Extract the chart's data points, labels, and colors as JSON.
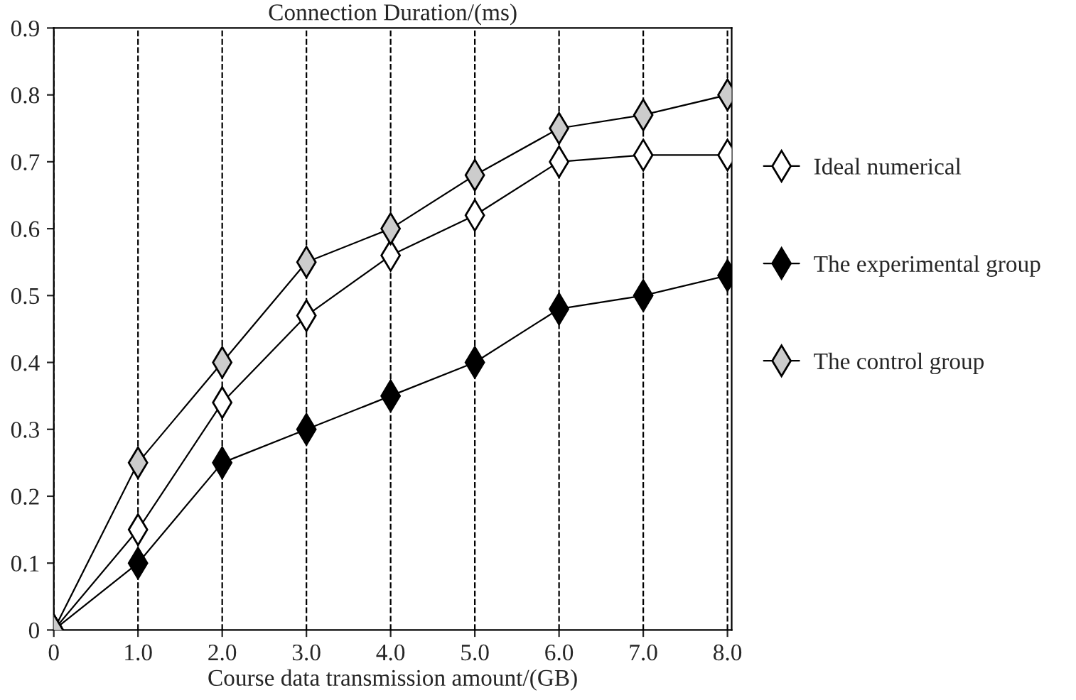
{
  "chart_data": {
    "type": "line",
    "title": "Connection Duration/(ms)",
    "xlabel": "Course data transmission amount/(GB)",
    "x": [
      0,
      1,
      2,
      3,
      4,
      5,
      6,
      7,
      8
    ],
    "series": [
      {
        "name": "Ideal numerical",
        "color": "#ffffff",
        "values": [
          0,
          0.15,
          0.34,
          0.47,
          0.56,
          0.62,
          0.7,
          0.71,
          0.71
        ]
      },
      {
        "name": "The experimental group",
        "color": "#000000",
        "values": [
          0,
          0.1,
          0.25,
          0.3,
          0.35,
          0.4,
          0.48,
          0.5,
          0.53
        ]
      },
      {
        "name": "The control group",
        "color": "#cccccc",
        "values": [
          0,
          0.25,
          0.4,
          0.55,
          0.6,
          0.68,
          0.75,
          0.77,
          0.8
        ]
      }
    ],
    "xlim": [
      0,
      8.05
    ],
    "ylim": [
      0,
      0.9
    ],
    "xticks": [
      0,
      {
        "value": 1,
        "label": "1.0"
      },
      {
        "value": 2,
        "label": "2.0"
      },
      {
        "value": 3,
        "label": "3.0"
      },
      {
        "value": 4,
        "label": "4.0"
      },
      {
        "value": 5,
        "label": "5.0"
      },
      {
        "value": 6,
        "label": "6.0"
      },
      {
        "value": 7,
        "label": "7.0"
      },
      {
        "value": 8,
        "label": "8.0"
      }
    ],
    "yticks": [
      0,
      0.1,
      0.2,
      0.3,
      0.4,
      0.5,
      0.6,
      0.7,
      0.8,
      0.9
    ],
    "grid": "x",
    "legend": "right",
    "marker": "diamond",
    "line_style": "solid"
  }
}
